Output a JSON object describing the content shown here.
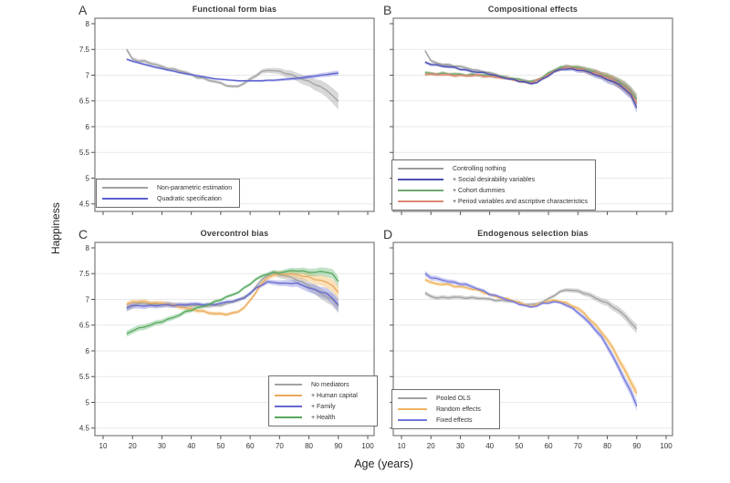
{
  "figure": {
    "ylabel": "Happiness",
    "xlabel": "Age (years)",
    "yticks": [
      8,
      7.5,
      7,
      6.5,
      6,
      5.5,
      5,
      4.5
    ],
    "xticks": [
      10,
      20,
      30,
      40,
      50,
      60,
      70,
      80,
      90,
      100
    ],
    "y_range": [
      4.5,
      8
    ],
    "x_range": [
      10,
      100
    ],
    "grid": "horizontal-only",
    "ages": [
      18,
      20,
      22,
      24,
      26,
      28,
      30,
      32,
      34,
      36,
      38,
      40,
      42,
      44,
      46,
      48,
      50,
      52,
      54,
      56,
      58,
      60,
      62,
      64,
      66,
      68,
      70,
      72,
      74,
      76,
      78,
      80,
      82,
      84,
      86,
      88,
      90
    ]
  },
  "chart_data": [
    {
      "type": "line",
      "letter": "A",
      "title": "Functional form bias",
      "legend_position": "bottom-left",
      "show_y_labels": true,
      "show_x_labels": false,
      "series": [
        {
          "name": "Non-parametric estimation",
          "color": "#a2a2a2",
          "band_color": "rgba(168,168,168,0.45)",
          "draw": 0,
          "smooth": false,
          "band": [
            0.04,
            0.03,
            0.16
          ],
          "values": [
            7.5,
            7.32,
            7.28,
            7.26,
            7.23,
            7.2,
            7.17,
            7.14,
            7.11,
            7.08,
            7.05,
            7.01,
            6.97,
            6.94,
            6.9,
            6.87,
            6.84,
            6.81,
            6.78,
            6.79,
            6.84,
            6.91,
            7.0,
            7.07,
            7.1,
            7.09,
            7.06,
            7.04,
            7.01,
            6.97,
            6.92,
            6.87,
            6.82,
            6.77,
            6.71,
            6.62,
            6.48
          ]
        },
        {
          "name": "Quadratic specification",
          "color": "#5a60cf",
          "band_color": "rgba(125,130,220,0.40)",
          "draw": 1,
          "smooth": true,
          "band": [
            0.025,
            0.02,
            0.05
          ],
          "values": [
            7.31,
            7.27,
            7.24,
            7.21,
            7.18,
            7.15,
            7.13,
            7.1,
            7.08,
            7.05,
            7.03,
            7.01,
            6.99,
            6.97,
            6.95,
            6.93,
            6.92,
            6.91,
            6.9,
            6.89,
            6.89,
            6.89,
            6.89,
            6.89,
            6.9,
            6.9,
            6.91,
            6.92,
            6.93,
            6.94,
            6.95,
            6.97,
            6.98,
            7.0,
            7.01,
            7.03,
            7.04
          ]
        }
      ]
    },
    {
      "type": "line",
      "letter": "B",
      "title": "Compositional effects",
      "legend_position": "bottom-left",
      "show_y_labels": false,
      "show_x_labels": false,
      "series": [
        {
          "name": "Controlling nothing",
          "color": "#9c9c9c",
          "band_color": "rgba(165,165,165,0.40)",
          "draw": 0,
          "smooth": false,
          "band": [
            0.03,
            0.025,
            0.1
          ],
          "values": [
            7.48,
            7.27,
            7.24,
            7.22,
            7.2,
            7.18,
            7.16,
            7.14,
            7.12,
            7.09,
            7.07,
            7.04,
            7.01,
            6.99,
            6.96,
            6.93,
            6.91,
            6.89,
            6.87,
            6.9,
            6.95,
            7.02,
            7.09,
            7.14,
            7.17,
            7.16,
            7.14,
            7.12,
            7.09,
            7.05,
            7.01,
            6.97,
            6.92,
            6.86,
            6.79,
            6.7,
            6.55
          ]
        },
        {
          "name": "+ Social desirability variables",
          "color": "#4b4eb0",
          "band_color": "rgba(105,108,195,0.45)",
          "draw": 3,
          "smooth": false,
          "band": [
            0.03,
            0.025,
            0.1
          ],
          "values": [
            7.24,
            7.22,
            7.2,
            7.18,
            7.16,
            7.14,
            7.12,
            7.1,
            7.08,
            7.06,
            7.04,
            7.02,
            6.99,
            6.97,
            6.94,
            6.91,
            6.88,
            6.86,
            6.84,
            6.87,
            6.92,
            6.99,
            7.06,
            7.11,
            7.13,
            7.12,
            7.1,
            7.08,
            7.05,
            7.01,
            6.97,
            6.92,
            6.87,
            6.81,
            6.73,
            6.62,
            6.38
          ]
        },
        {
          "name": "+ Cohort dummies",
          "color": "#6fa86f",
          "band_color": "rgba(140,170,110,0.50)",
          "draw": 1,
          "smooth": false,
          "band": [
            0.03,
            0.025,
            0.1
          ],
          "values": [
            7.05,
            7.04,
            7.03,
            7.03,
            7.02,
            7.02,
            7.02,
            7.01,
            7.01,
            7.0,
            7.0,
            6.99,
            6.98,
            6.97,
            6.95,
            6.93,
            6.91,
            6.89,
            6.88,
            6.91,
            6.96,
            7.03,
            7.1,
            7.15,
            7.17,
            7.16,
            7.14,
            7.12,
            7.09,
            7.06,
            7.02,
            6.97,
            6.92,
            6.86,
            6.79,
            6.69,
            6.52
          ]
        },
        {
          "name": "+ Period variables and ascriptive characteristics",
          "color": "#dd8876",
          "band_color": "rgba(215,140,105,0.50)",
          "draw": 2,
          "smooth": false,
          "band": [
            0.03,
            0.025,
            0.1
          ],
          "values": [
            7.03,
            7.02,
            7.01,
            7.01,
            7.0,
            7.0,
            7.0,
            6.99,
            6.99,
            6.99,
            6.98,
            6.98,
            6.97,
            6.95,
            6.93,
            6.91,
            6.89,
            6.87,
            6.86,
            6.89,
            6.94,
            7.01,
            7.08,
            7.13,
            7.15,
            7.14,
            7.12,
            7.1,
            7.07,
            7.04,
            7.0,
            6.95,
            6.9,
            6.84,
            6.76,
            6.66,
            6.46
          ]
        }
      ]
    },
    {
      "type": "line",
      "letter": "C",
      "title": "Overcontrol bias",
      "legend_position": "bottom-right",
      "show_y_labels": true,
      "show_x_labels": true,
      "series": [
        {
          "name": "No mediators",
          "color": "#a2a2a2",
          "band_color": "rgba(168,168,168,0.45)",
          "draw": 0,
          "smooth": false,
          "band": [
            0.06,
            0.035,
            0.13
          ],
          "values": [
            6.82,
            6.88,
            6.91,
            6.92,
            6.91,
            6.9,
            6.9,
            6.9,
            6.89,
            6.89,
            6.89,
            6.89,
            6.88,
            6.87,
            6.87,
            6.88,
            6.9,
            6.92,
            6.95,
            6.98,
            7.03,
            7.12,
            7.25,
            7.38,
            7.47,
            7.5,
            7.48,
            7.46,
            7.43,
            7.38,
            7.32,
            7.26,
            7.19,
            7.12,
            7.06,
            6.98,
            6.86
          ]
        },
        {
          "name": "+ Human capital",
          "color": "#e9a95d",
          "band_color": "rgba(245,200,130,0.55)",
          "draw": 1,
          "smooth": false,
          "band": [
            0.05,
            0.035,
            0.13
          ],
          "values": [
            6.9,
            6.94,
            6.95,
            6.95,
            6.94,
            6.93,
            6.92,
            6.9,
            6.88,
            6.86,
            6.84,
            6.81,
            6.78,
            6.76,
            6.74,
            6.73,
            6.72,
            6.71,
            6.72,
            6.76,
            6.85,
            6.98,
            7.15,
            7.3,
            7.42,
            7.48,
            7.5,
            7.5,
            7.49,
            7.47,
            7.45,
            7.43,
            7.4,
            7.37,
            7.33,
            7.27,
            7.12
          ]
        },
        {
          "name": "+ Family",
          "color": "#6468ce",
          "band_color": "rgba(130,134,220,0.42)",
          "draw": 2,
          "smooth": false,
          "band": [
            0.06,
            0.03,
            0.13
          ],
          "values": [
            6.84,
            6.87,
            6.88,
            6.88,
            6.88,
            6.88,
            6.88,
            6.89,
            6.89,
            6.89,
            6.9,
            6.9,
            6.9,
            6.9,
            6.9,
            6.91,
            6.92,
            6.94,
            6.96,
            6.99,
            7.04,
            7.12,
            7.21,
            7.28,
            7.33,
            7.34,
            7.32,
            7.31,
            7.31,
            7.3,
            7.27,
            7.23,
            7.19,
            7.15,
            7.1,
            7.02,
            6.9
          ]
        },
        {
          "name": "+ Health",
          "color": "#56a85e",
          "band_color": "rgba(120,190,130,0.45)",
          "draw": 3,
          "smooth": false,
          "band": [
            0.06,
            0.03,
            0.1
          ],
          "values": [
            6.32,
            6.4,
            6.44,
            6.47,
            6.5,
            6.53,
            6.57,
            6.61,
            6.66,
            6.7,
            6.75,
            6.79,
            6.83,
            6.87,
            6.91,
            6.95,
            6.99,
            7.04,
            7.09,
            7.15,
            7.22,
            7.3,
            7.38,
            7.45,
            7.5,
            7.52,
            7.52,
            7.53,
            7.55,
            7.56,
            7.55,
            7.54,
            7.52,
            7.53,
            7.53,
            7.49,
            7.36
          ]
        }
      ]
    },
    {
      "type": "line",
      "letter": "D",
      "title": "Endogenous selection bias",
      "legend_position": "bottom-left",
      "show_y_labels": false,
      "show_x_labels": true,
      "series": [
        {
          "name": "Pooled OLS",
          "color": "#a2a2a2",
          "band_color": "rgba(168,168,168,0.45)",
          "draw": 0,
          "smooth": false,
          "band": [
            0.04,
            0.03,
            0.09
          ],
          "values": [
            7.12,
            7.06,
            7.04,
            7.03,
            7.03,
            7.04,
            7.04,
            7.04,
            7.03,
            7.02,
            7.01,
            7.0,
            6.99,
            6.98,
            6.97,
            6.95,
            6.93,
            6.91,
            6.9,
            6.92,
            6.95,
            7.0,
            7.08,
            7.15,
            7.19,
            7.18,
            7.15,
            7.12,
            7.08,
            7.03,
            6.98,
            6.92,
            6.85,
            6.77,
            6.68,
            6.56,
            6.42
          ]
        },
        {
          "name": "Random effects",
          "color": "#eeb45e",
          "band_color": "rgba(245,200,130,0.55)",
          "draw": 1,
          "smooth": false,
          "band": [
            0.035,
            0.025,
            0.09
          ],
          "values": [
            7.4,
            7.33,
            7.3,
            7.29,
            7.28,
            7.26,
            7.25,
            7.23,
            7.2,
            7.17,
            7.13,
            7.1,
            7.06,
            7.03,
            7.0,
            6.97,
            6.94,
            6.9,
            6.87,
            6.89,
            6.93,
            6.96,
            6.98,
            6.97,
            6.93,
            6.87,
            6.82,
            6.73,
            6.62,
            6.5,
            6.36,
            6.21,
            6.03,
            5.83,
            5.62,
            5.4,
            5.18
          ]
        },
        {
          "name": "Fixed effects",
          "color": "#7377dc",
          "band_color": "rgba(140,144,228,0.45)",
          "draw": 2,
          "smooth": false,
          "band": [
            0.05,
            0.025,
            0.1
          ],
          "values": [
            7.5,
            7.43,
            7.39,
            7.37,
            7.35,
            7.33,
            7.31,
            7.28,
            7.24,
            7.2,
            7.16,
            7.11,
            7.07,
            7.03,
            6.99,
            6.95,
            6.92,
            6.88,
            6.85,
            6.87,
            6.91,
            6.94,
            6.96,
            6.94,
            6.89,
            6.82,
            6.75,
            6.65,
            6.54,
            6.41,
            6.26,
            6.08,
            5.88,
            5.66,
            5.44,
            5.2,
            4.93
          ]
        }
      ]
    }
  ]
}
